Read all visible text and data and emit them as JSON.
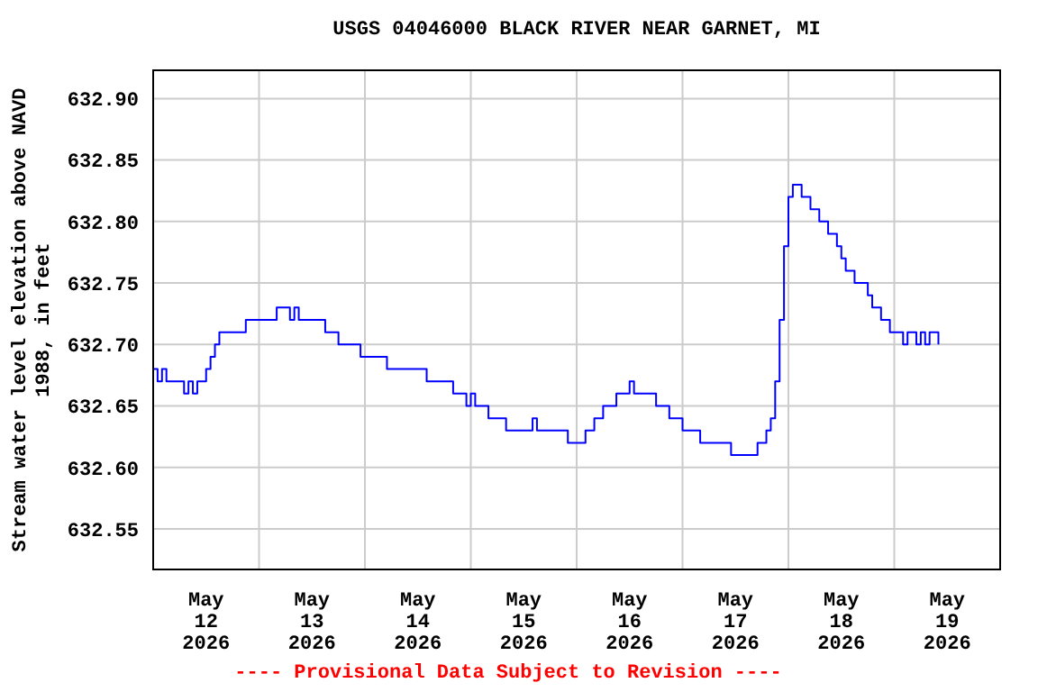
{
  "chart_data": {
    "type": "step",
    "title": "USGS 04046000 BLACK RIVER NEAR GARNET, MI",
    "ylabel": "Stream water level elevation above NAVD\n1988, in feet",
    "annotations": [
      "---- Provisional Data Subject to Revision ----"
    ],
    "x": [
      "2026-05-12T00:00",
      "2026-05-12T01:00",
      "2026-05-12T02:00",
      "2026-05-12T03:00",
      "2026-05-12T07:00",
      "2026-05-12T08:00",
      "2026-05-12T09:00",
      "2026-05-12T10:00",
      "2026-05-12T12:00",
      "2026-05-12T13:00",
      "2026-05-12T14:00",
      "2026-05-12T15:00",
      "2026-05-12T21:00",
      "2026-05-13T04:00",
      "2026-05-13T07:00",
      "2026-05-13T08:00",
      "2026-05-13T09:00",
      "2026-05-13T15:00",
      "2026-05-13T18:00",
      "2026-05-13T23:00",
      "2026-05-14T05:00",
      "2026-05-14T14:00",
      "2026-05-14T20:00",
      "2026-05-14T23:00",
      "2026-05-15T00:00",
      "2026-05-15T01:00",
      "2026-05-15T04:00",
      "2026-05-15T08:00",
      "2026-05-15T14:00",
      "2026-05-15T15:00",
      "2026-05-15T22:00",
      "2026-05-16T02:00",
      "2026-05-16T04:00",
      "2026-05-16T06:00",
      "2026-05-16T09:00",
      "2026-05-16T12:00",
      "2026-05-16T13:00",
      "2026-05-16T18:00",
      "2026-05-16T21:00",
      "2026-05-17T00:00",
      "2026-05-17T04:00",
      "2026-05-17T11:00",
      "2026-05-17T17:00",
      "2026-05-17T19:00",
      "2026-05-17T20:00",
      "2026-05-17T21:00",
      "2026-05-17T22:00",
      "2026-05-17T23:00",
      "2026-05-18T00:00",
      "2026-05-18T01:00",
      "2026-05-18T03:00",
      "2026-05-18T05:00",
      "2026-05-18T07:00",
      "2026-05-18T09:00",
      "2026-05-18T11:00",
      "2026-05-18T12:00",
      "2026-05-18T13:00",
      "2026-05-18T15:00",
      "2026-05-18T18:00",
      "2026-05-18T19:00",
      "2026-05-18T21:00",
      "2026-05-18T23:00",
      "2026-05-19T02:00",
      "2026-05-19T03:00",
      "2026-05-19T05:00",
      "2026-05-19T06:00",
      "2026-05-19T07:00",
      "2026-05-19T08:00",
      "2026-05-19T10:00"
    ],
    "series": [
      {
        "color": "#0000ff",
        "values": [
          632.68,
          632.67,
          632.68,
          632.67,
          632.66,
          632.67,
          632.66,
          632.67,
          632.68,
          632.69,
          632.7,
          632.71,
          632.72,
          632.73,
          632.72,
          632.73,
          632.72,
          632.71,
          632.7,
          632.69,
          632.68,
          632.67,
          632.66,
          632.65,
          632.66,
          632.65,
          632.64,
          632.63,
          632.64,
          632.63,
          632.62,
          632.63,
          632.64,
          632.65,
          632.66,
          632.67,
          632.66,
          632.65,
          632.64,
          632.63,
          632.62,
          632.61,
          632.62,
          632.63,
          632.64,
          632.67,
          632.72,
          632.78,
          632.82,
          632.83,
          632.82,
          632.81,
          632.8,
          632.79,
          632.78,
          632.77,
          632.76,
          632.75,
          632.74,
          632.73,
          632.72,
          632.71,
          632.7,
          632.71,
          632.7,
          632.71,
          632.7,
          632.71,
          632.7
        ]
      }
    ],
    "xlim": [
      "2026-05-12",
      "2026-05-20"
    ],
    "xticks": [
      {
        "value": "2026-05-12T12:00",
        "label": "May\n12\n2026"
      },
      {
        "value": "2026-05-13",
        "label": null
      },
      {
        "value": "2026-05-13T12:00",
        "label": "May\n13\n2026"
      },
      {
        "value": "2026-05-14",
        "label": null
      },
      {
        "value": "2026-05-14T12:00",
        "label": "May\n14\n2026"
      },
      {
        "value": "2026-05-15",
        "label": null
      },
      {
        "value": "2026-05-15T12:00",
        "label": "May\n15\n2026"
      },
      {
        "value": "2026-05-16",
        "label": null
      },
      {
        "value": "2026-05-16T12:00",
        "label": "May\n16\n2026"
      },
      {
        "value": "2026-05-17",
        "label": null
      },
      {
        "value": "2026-05-17T12:00",
        "label": "May\n17\n2026"
      },
      {
        "value": "2026-05-18",
        "label": null
      },
      {
        "value": "2026-05-18T12:00",
        "label": "May\n18\n2026"
      },
      {
        "value": "2026-05-19",
        "label": null
      },
      {
        "value": "2026-05-19T12:00",
        "label": "May\n19\n2026"
      }
    ],
    "ylim": [
      632.517,
      632.923
    ],
    "yticks": [
      {
        "value": 632.55,
        "label": "632.55"
      },
      {
        "value": 632.6,
        "label": "632.60"
      },
      {
        "value": 632.65,
        "label": "632.65"
      },
      {
        "value": 632.7,
        "label": "632.70"
      },
      {
        "value": 632.75,
        "label": "632.75"
      },
      {
        "value": 632.8,
        "label": "632.80"
      },
      {
        "value": 632.85,
        "label": "632.85"
      },
      {
        "value": 632.9,
        "label": "632.90"
      }
    ],
    "grid": true
  }
}
